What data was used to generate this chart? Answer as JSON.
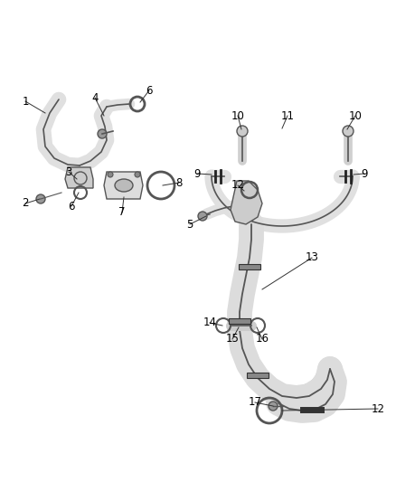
{
  "bg_color": "#ffffff",
  "line_color": "#555555",
  "fill_color": "#e8e8e8",
  "dark_color": "#222222",
  "fig_width": 4.38,
  "fig_height": 5.33,
  "dpi": 100
}
